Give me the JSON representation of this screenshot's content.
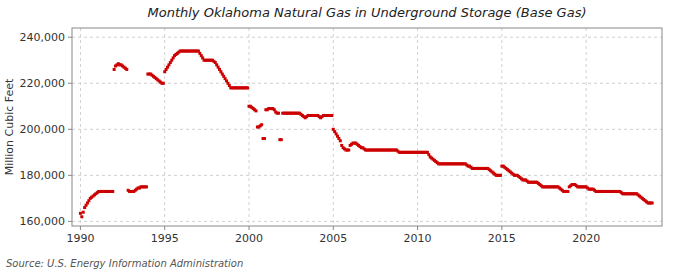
{
  "chart_data": {
    "type": "scatter",
    "title": "Monthly Oklahoma Natural Gas in Underground Storage (Base Gas)",
    "y_label": "Million Cubic Feet",
    "source": "Source: U.S. Energy Information Administration",
    "color": "#cc0000",
    "marker": "square",
    "grid": true,
    "xlim": [
      1989.5,
      2024.5
    ],
    "xticks": [
      1990,
      1995,
      2000,
      2005,
      2010,
      2015,
      2020
    ],
    "ylim": [
      158000,
      244000
    ],
    "yticks": [
      {
        "value": 160000,
        "label": "160,000"
      },
      {
        "value": 180000,
        "label": "180,000"
      },
      {
        "value": 200000,
        "label": "200,000"
      },
      {
        "value": 220000,
        "label": "220,000"
      },
      {
        "value": 240000,
        "label": "240,000"
      }
    ],
    "x": [
      1990.0,
      1990.083,
      1990.167,
      1990.25,
      1990.333,
      1990.417,
      1990.5,
      1990.583,
      1990.667,
      1990.75,
      1990.833,
      1990.917,
      1991.0,
      1991.083,
      1991.167,
      1991.25,
      1991.333,
      1991.417,
      1991.5,
      1991.583,
      1991.667,
      1991.75,
      1991.833,
      1991.917,
      1992.0,
      1992.083,
      1992.167,
      1992.25,
      1992.333,
      1992.417,
      1992.5,
      1992.583,
      1992.667,
      1992.75,
      1992.833,
      1992.917,
      1993.0,
      1993.083,
      1993.167,
      1993.25,
      1993.333,
      1993.417,
      1993.5,
      1993.583,
      1993.667,
      1993.75,
      1993.833,
      1993.917,
      1994.0,
      1994.083,
      1994.167,
      1994.25,
      1994.333,
      1994.417,
      1994.5,
      1994.583,
      1994.667,
      1994.75,
      1994.833,
      1994.917,
      1995.0,
      1995.083,
      1995.167,
      1995.25,
      1995.333,
      1995.417,
      1995.5,
      1995.583,
      1995.667,
      1995.75,
      1995.833,
      1995.917,
      1996.0,
      1996.083,
      1996.167,
      1996.25,
      1996.333,
      1996.417,
      1996.5,
      1996.583,
      1996.667,
      1996.75,
      1996.833,
      1996.917,
      1997.0,
      1997.083,
      1997.167,
      1997.25,
      1997.333,
      1997.417,
      1997.5,
      1997.583,
      1997.667,
      1997.75,
      1997.833,
      1997.917,
      1998.0,
      1998.083,
      1998.167,
      1998.25,
      1998.333,
      1998.417,
      1998.5,
      1998.583,
      1998.667,
      1998.75,
      1998.833,
      1998.917,
      1999.0,
      1999.083,
      1999.167,
      1999.25,
      1999.333,
      1999.417,
      1999.5,
      1999.583,
      1999.667,
      1999.75,
      1999.833,
      1999.917,
      2000.0,
      2000.083,
      2000.167,
      2000.25,
      2000.333,
      2000.417,
      2000.5,
      2000.583,
      2000.667,
      2000.75,
      2000.833,
      2000.917,
      2001.0,
      2001.083,
      2001.167,
      2001.25,
      2001.333,
      2001.417,
      2001.5,
      2001.583,
      2001.667,
      2001.75,
      2001.833,
      2001.917,
      2002.0,
      2002.083,
      2002.167,
      2002.25,
      2002.333,
      2002.417,
      2002.5,
      2002.583,
      2002.667,
      2002.75,
      2002.833,
      2002.917,
      2003.0,
      2003.083,
      2003.167,
      2003.25,
      2003.333,
      2003.417,
      2003.5,
      2003.583,
      2003.667,
      2003.75,
      2003.833,
      2003.917,
      2004.0,
      2004.083,
      2004.167,
      2004.25,
      2004.333,
      2004.417,
      2004.5,
      2004.583,
      2004.667,
      2004.75,
      2004.833,
      2004.917,
      2005.0,
      2005.083,
      2005.167,
      2005.25,
      2005.333,
      2005.417,
      2005.5,
      2005.583,
      2005.667,
      2005.75,
      2005.833,
      2005.917,
      2006.0,
      2006.083,
      2006.167,
      2006.25,
      2006.333,
      2006.417,
      2006.5,
      2006.583,
      2006.667,
      2006.75,
      2006.833,
      2006.917,
      2007.0,
      2007.083,
      2007.167,
      2007.25,
      2007.333,
      2007.417,
      2007.5,
      2007.583,
      2007.667,
      2007.75,
      2007.833,
      2007.917,
      2008.0,
      2008.083,
      2008.167,
      2008.25,
      2008.333,
      2008.417,
      2008.5,
      2008.583,
      2008.667,
      2008.75,
      2008.833,
      2008.917,
      2009.0,
      2009.083,
      2009.167,
      2009.25,
      2009.333,
      2009.417,
      2009.5,
      2009.583,
      2009.667,
      2009.75,
      2009.833,
      2009.917,
      2010.0,
      2010.083,
      2010.167,
      2010.25,
      2010.333,
      2010.417,
      2010.5,
      2010.583,
      2010.667,
      2010.75,
      2010.833,
      2010.917,
      2011.0,
      2011.083,
      2011.167,
      2011.25,
      2011.333,
      2011.417,
      2011.5,
      2011.583,
      2011.667,
      2011.75,
      2011.833,
      2011.917,
      2012.0,
      2012.083,
      2012.167,
      2012.25,
      2012.333,
      2012.417,
      2012.5,
      2012.583,
      2012.667,
      2012.75,
      2012.833,
      2012.917,
      2013.0,
      2013.083,
      2013.167,
      2013.25,
      2013.333,
      2013.417,
      2013.5,
      2013.583,
      2013.667,
      2013.75,
      2013.833,
      2013.917,
      2014.0,
      2014.083,
      2014.167,
      2014.25,
      2014.333,
      2014.417,
      2014.5,
      2014.583,
      2014.667,
      2014.75,
      2014.833,
      2014.917,
      2015.0,
      2015.083,
      2015.167,
      2015.25,
      2015.333,
      2015.417,
      2015.5,
      2015.583,
      2015.667,
      2015.75,
      2015.833,
      2015.917,
      2016.0,
      2016.083,
      2016.167,
      2016.25,
      2016.333,
      2016.417,
      2016.5,
      2016.583,
      2016.667,
      2016.75,
      2016.833,
      2016.917,
      2017.0,
      2017.083,
      2017.167,
      2017.25,
      2017.333,
      2017.417,
      2017.5,
      2017.583,
      2017.667,
      2017.75,
      2017.833,
      2017.917,
      2018.0,
      2018.083,
      2018.167,
      2018.25,
      2018.333,
      2018.417,
      2018.5,
      2018.583,
      2018.667,
      2018.75,
      2018.833,
      2018.917,
      2019.0,
      2019.083,
      2019.167,
      2019.25,
      2019.333,
      2019.417,
      2019.5,
      2019.583,
      2019.667,
      2019.75,
      2019.833,
      2019.917,
      2020.0,
      2020.083,
      2020.167,
      2020.25,
      2020.333,
      2020.417,
      2020.5,
      2020.583,
      2020.667,
      2020.75,
      2020.833,
      2020.917,
      2021.0,
      2021.083,
      2021.167,
      2021.25,
      2021.333,
      2021.417,
      2021.5,
      2021.583,
      2021.667,
      2021.75,
      2021.833,
      2021.917,
      2022.0,
      2022.083,
      2022.167,
      2022.25,
      2022.333,
      2022.417,
      2022.5,
      2022.583,
      2022.667,
      2022.75,
      2022.833,
      2022.917,
      2023.0,
      2023.083,
      2023.167,
      2023.25,
      2023.333,
      2023.417,
      2023.5,
      2023.583,
      2023.667,
      2023.75,
      2023.833,
      2023.917
    ],
    "values": [
      163500,
      162000,
      164000,
      166000,
      167000,
      168000,
      169000,
      170000,
      170500,
      171000,
      171500,
      172000,
      172500,
      173000,
      173000,
      173000,
      173000,
      173000,
      173000,
      173000,
      173000,
      173000,
      173000,
      173000,
      226000,
      227500,
      228000,
      228500,
      228000,
      228000,
      227500,
      227000,
      226500,
      226000,
      173500,
      173000,
      173000,
      173000,
      173000,
      173500,
      174000,
      174500,
      174500,
      175000,
      175000,
      175000,
      175000,
      175000,
      224000,
      224000,
      224000,
      223500,
      223000,
      222500,
      222000,
      221500,
      221000,
      220500,
      220000,
      220000,
      225000,
      226000,
      227000,
      228000,
      229000,
      230000,
      231000,
      232000,
      232500,
      233000,
      233500,
      234000,
      234000,
      234000,
      234000,
      234000,
      234000,
      234000,
      234000,
      234000,
      234000,
      234000,
      234000,
      234000,
      234000,
      233000,
      232000,
      231000,
      230000,
      230000,
      230000,
      230000,
      230000,
      230000,
      230000,
      229500,
      229000,
      228000,
      227000,
      226000,
      225000,
      224000,
      223000,
      222000,
      221000,
      220000,
      219000,
      218000,
      218000,
      218000,
      218000,
      218000,
      218000,
      218000,
      218000,
      218000,
      218000,
      218000,
      218000,
      218000,
      210000,
      210000,
      209500,
      209000,
      208500,
      208000,
      201000,
      201000,
      201500,
      202000,
      196000,
      196000,
      208500,
      208500,
      209000,
      209000,
      209000,
      209000,
      208500,
      207500,
      207000,
      207000,
      195500,
      195500,
      207000,
      207000,
      207000,
      207000,
      207000,
      207000,
      207000,
      207000,
      207000,
      207000,
      207000,
      207000,
      207000,
      206500,
      206000,
      205500,
      205000,
      205500,
      206000,
      206000,
      206000,
      206000,
      206000,
      206000,
      206000,
      206000,
      205500,
      205000,
      205500,
      206000,
      206000,
      206000,
      206000,
      206000,
      206000,
      206000,
      200000,
      199000,
      198000,
      197000,
      196000,
      195000,
      193000,
      192000,
      191500,
      191000,
      191000,
      191000,
      193000,
      193500,
      194000,
      194000,
      194000,
      193500,
      193000,
      192500,
      192000,
      192000,
      191500,
      191000,
      191000,
      191000,
      191000,
      191000,
      191000,
      191000,
      191000,
      191000,
      191000,
      191000,
      191000,
      191000,
      191000,
      191000,
      191000,
      191000,
      191000,
      191000,
      191000,
      191000,
      191000,
      191000,
      190500,
      190000,
      190000,
      190000,
      190000,
      190000,
      190000,
      190000,
      190000,
      190000,
      190000,
      190000,
      190000,
      190000,
      190000,
      190000,
      190000,
      190000,
      190000,
      190000,
      190000,
      190000,
      189000,
      188000,
      187500,
      187000,
      186500,
      186000,
      185500,
      185000,
      185000,
      185000,
      185000,
      185000,
      185000,
      185000,
      185000,
      185000,
      185000,
      185000,
      185000,
      185000,
      185000,
      185000,
      185000,
      185000,
      185000,
      185000,
      185000,
      184500,
      184000,
      184000,
      183500,
      183000,
      183000,
      183000,
      183000,
      183000,
      183000,
      183000,
      183000,
      183000,
      183000,
      183000,
      183000,
      182500,
      182000,
      181500,
      181000,
      180500,
      180000,
      180000,
      180000,
      180000,
      184000,
      184000,
      183500,
      183000,
      182500,
      182000,
      181500,
      181000,
      180500,
      180000,
      180000,
      180000,
      179500,
      179000,
      178500,
      178000,
      178000,
      178000,
      177500,
      177000,
      177000,
      177000,
      177000,
      177000,
      177000,
      177000,
      176500,
      176000,
      175500,
      175000,
      175000,
      175000,
      175000,
      175000,
      175000,
      175000,
      175000,
      175000,
      175000,
      175000,
      175000,
      174500,
      174000,
      173500,
      173000,
      173000,
      173000,
      173000,
      175000,
      175500,
      176000,
      176000,
      176000,
      175500,
      175000,
      175000,
      175000,
      175000,
      175000,
      175000,
      175000,
      174500,
      174000,
      174000,
      174000,
      174000,
      173500,
      173000,
      173000,
      173000,
      173000,
      173000,
      173000,
      173000,
      173000,
      173000,
      173000,
      173000,
      173000,
      173000,
      173000,
      173000,
      173000,
      173000,
      173000,
      172500,
      172000,
      172000,
      172000,
      172000,
      172000,
      172000,
      172000,
      172000,
      172000,
      172000,
      172000,
      171500,
      171000,
      170500,
      170000,
      169500,
      169000,
      168500,
      168000,
      168000,
      168000,
      168000
    ]
  }
}
